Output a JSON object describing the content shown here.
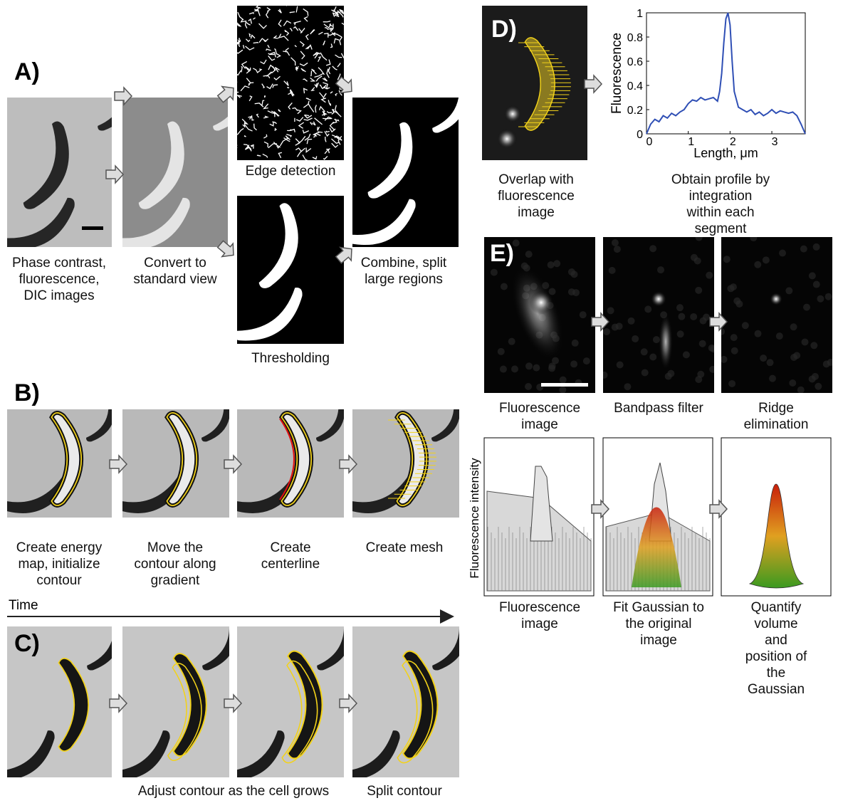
{
  "panel_a": {
    "label": "A)",
    "captions": [
      "Phase contrast,\nfluorescence,\nDIC images",
      "Convert to\nstandard view",
      "Edge detection",
      "Thresholding",
      "Combine, split\nlarge regions"
    ]
  },
  "panel_b": {
    "label": "B)",
    "captions": [
      "Create energy\nmap, initialize\ncontour",
      "Move the\ncontour along\ngradient",
      "Create\ncenterline",
      "Create mesh"
    ]
  },
  "time_label": "Time",
  "panel_c": {
    "label": "C)",
    "captions": [
      "Adjust contour as the cell grows",
      "Split contour"
    ]
  },
  "panel_d": {
    "label": "D)",
    "captions": [
      "Overlap with\nfluorescence\nimage",
      "Obtain profile by integration\nwithin each segment"
    ],
    "chart_data": {
      "type": "line",
      "x_label": "Length, μm",
      "y_label": "Fluorescence",
      "x": [
        0,
        0.1,
        0.2,
        0.3,
        0.4,
        0.5,
        0.6,
        0.7,
        0.8,
        0.9,
        1.0,
        1.1,
        1.2,
        1.3,
        1.4,
        1.5,
        1.6,
        1.7,
        1.75,
        1.8,
        1.85,
        1.9,
        1.95,
        2.0,
        2.05,
        2.1,
        2.2,
        2.3,
        2.4,
        2.5,
        2.6,
        2.7,
        2.8,
        2.9,
        3.0,
        3.1,
        3.2,
        3.3,
        3.4,
        3.5,
        3.6,
        3.7,
        3.8
      ],
      "series": [
        {
          "color": "#2f4fb5",
          "values": [
            0,
            0.08,
            0.12,
            0.1,
            0.15,
            0.13,
            0.17,
            0.15,
            0.18,
            0.2,
            0.25,
            0.28,
            0.27,
            0.3,
            0.28,
            0.29,
            0.3,
            0.27,
            0.35,
            0.5,
            0.75,
            0.95,
            1.0,
            0.9,
            0.6,
            0.35,
            0.22,
            0.2,
            0.18,
            0.2,
            0.16,
            0.18,
            0.15,
            0.17,
            0.2,
            0.17,
            0.19,
            0.18,
            0.17,
            0.18,
            0.15,
            0.08,
            0
          ]
        }
      ],
      "xlim": [
        0,
        3.8
      ],
      "ylim": [
        0,
        1
      ],
      "xticks": [
        0,
        1,
        2,
        3
      ],
      "yticks": [
        0,
        0.2,
        0.4,
        0.6,
        0.8,
        1
      ]
    }
  },
  "panel_e": {
    "label": "E)",
    "captions": [
      "Fluorescence\nimage",
      "Bandpass filter",
      "Ridge\nelimination",
      "Fluorescence\nimage",
      "Fit Gaussian to\nthe original\nimage",
      "Quantify volume\nand position of\nthe Gaussian"
    ],
    "z_label": "Fluorescence intensity"
  }
}
